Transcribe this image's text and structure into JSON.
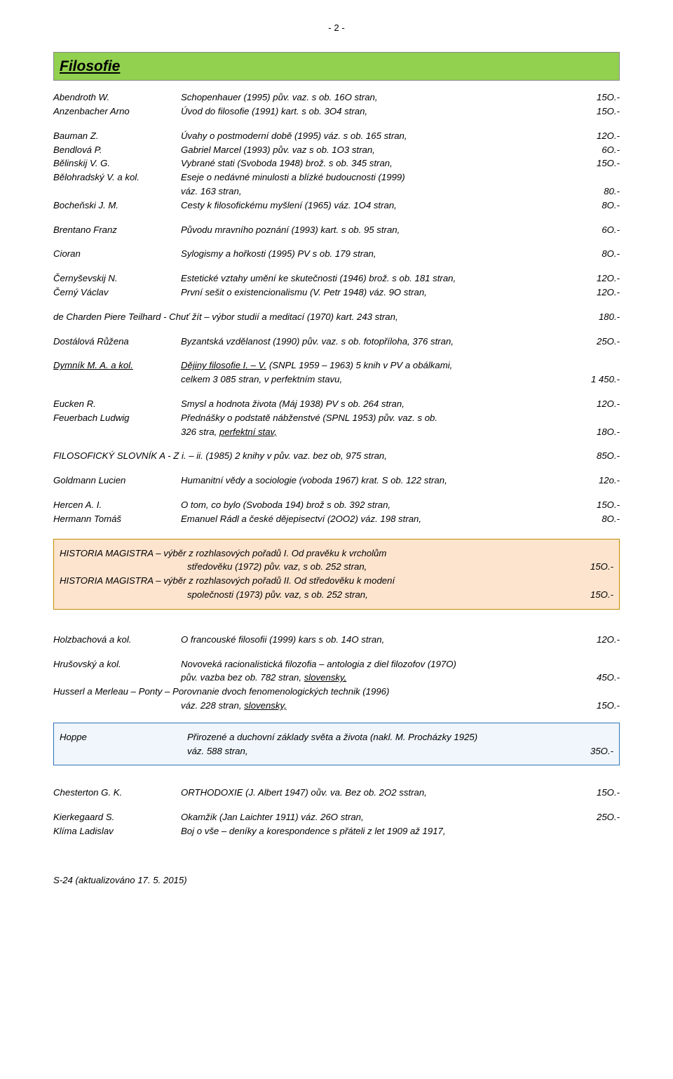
{
  "page_number": "- 2 -",
  "title": "Filosofie",
  "entries": [
    {
      "a": "Abendroth W.",
      "d": "Schopenhauer (1995) pův. vaz. s ob. 16O stran,",
      "p": "15O.-"
    },
    {
      "a": "Anzenbacher Arno",
      "d": "Úvod do filosofie (1991) kart. s ob. 3O4 stran,",
      "p": "15O.-"
    }
  ],
  "block2": [
    {
      "a": "Bauman Z.",
      "d": "Úvahy o postmoderní době (1995) váz. s ob. 165 stran,",
      "p": "12O.-"
    },
    {
      "a": "Bendlová P.",
      "d": "Gabriel Marcel (1993) pův. vaz s ob. 1O3 stran,",
      "p": "6O.-"
    },
    {
      "a": "Bělinskij V. G.",
      "d": "Vybrané stati (Svoboda 1948) brož. s ob. 345 stran,",
      "p": "15O.-"
    },
    {
      "a": "Bělohradský V. a kol.",
      "d": "Eseje o nedávné minulosti a blízké budoucnosti (1999)",
      "p": ""
    },
    {
      "a": "",
      "d": "váz. 163 stran,",
      "p": "80.-",
      "indent": true
    },
    {
      "a": "Bocheňski J. M.",
      "d": "Cesty k filosofickému myšlení (1965) váz. 1O4 stran,",
      "p": "8O.-"
    }
  ],
  "block3": [
    {
      "a": "Brentano Franz",
      "d": "Původu mravního poznání (1993) kart. s ob. 95 stran,",
      "p": "6O.-"
    }
  ],
  "block4": [
    {
      "a": "Cioran",
      "d": "Sylogismy a hořkosti (1995)  PV s ob. 179 stran,",
      "p": "8O.-"
    }
  ],
  "block5": [
    {
      "a": "Černyševskij N.",
      "d": "Estetické vztahy umění ke skutečnosti (1946) brož. s ob. 181 stran,",
      "p": "12O.-"
    },
    {
      "a": "Černý Václav",
      "d": "První sešit o existencionalismu (V. Petr 1948) váz. 9O stran,",
      "p": "12O.-"
    }
  ],
  "charden_full": "de Charden Piere Teilhard -  Chuť žít – výbor studií a meditací  (1970)  kart. 243 stran,",
  "charden_p": "180.-",
  "block7": [
    {
      "a": "Dostálová Růžena",
      "d": "Byzantská vzdělanost (1990) pův. vaz. s ob. fotopříloha, 376 stran,",
      "p": "25O.-"
    }
  ],
  "dymnik_a": "Dymník M. A. a kol.",
  "dymnik_d1": "Dějiny filosofie I. – V.",
  "dymnik_d2": " (SNPL 1959 – 1963) 5 knih v PV a obálkami,",
  "dymnik_line2": "celkem 3 085 stran,  v perfektním stavu,",
  "dymnik_p": "1 450.-",
  "block9": [
    {
      "a": "Eucken R.",
      "d": "Smysl a hodnota života (Máj 1938) PV s ob.  264 stran,",
      "p": "12O.-"
    },
    {
      "a": "Feuerbach Ludwig",
      "d": "Přednášky o podstatě nábženstvé (SPNL 1953) pův. vaz. s ob.",
      "p": ""
    }
  ],
  "feuer_line2_d": "326 stra, ",
  "feuer_line2_u": "perfektní stav,",
  "feuer_p": "18O.-",
  "filoslovnik_d": "FILOSOFICKÝ SLOVNÍK A - Z  i.  –  ii. (1985) 2 knihy v pův. vaz. bez ob,  975 stran,",
  "filoslovnik_p": "85O.-",
  "block11": [
    {
      "a": "Goldmann Lucien",
      "d": "Humanitní vědy a sociologie (voboda 1967) krat. S ob. 122 stran,",
      "p": "12o.-"
    }
  ],
  "block12": [
    {
      "a": "Hercen  A. I.",
      "d": "O tom, co bylo (Svoboda 194) brož s ob. 392 stran,",
      "p": "15O.-"
    },
    {
      "a": "Hermann Tomáš",
      "d": "Emanuel Rádl a české dějepisectví (2OO2) váz. 198 stran,",
      "p": "8O.-"
    }
  ],
  "historia1_d1": "HISTORIA MAGISTRA – výběr z rozhlasových pořadů I. Od pravěku k vrcholům",
  "historia1_d2": "středověku (1972) pův. vaz, s ob. 252 stran,",
  "historia1_p": "15O.-",
  "historia2_d1": "HISTORIA MAGISTRA – výběr z rozhlasových pořadů II. Od středověku k modení",
  "historia2_d2": "společnosti (1973) pův. vaz, s ob. 252 stran,",
  "historia2_p": "15O.-",
  "block13": [
    {
      "a": "Holzbachová a kol.",
      "d": "O francouské filosofii (1999) kars s ob. 14O stran,",
      "p": "12O.-"
    }
  ],
  "hrusovsky_a": "Hrušovský a kol.",
  "hrusovsky_d1": "Novoveká racionalistická filozofia – antologia z diel filozofov (197O)",
  "hrusovsky_d2a": "pův. vazba bez ob. 782 stran, ",
  "hrusovsky_d2u": "slovensky,",
  "hrusovsky_p": "45O.-",
  "husserl_d1": "Husserl a Merleau – Ponty – Porovnanie dvoch fenomenologických technik (1996)",
  "husserl_d2": "váz. 228 stran, ",
  "husserl_d2u": "slovensky,",
  "husserl_p": "15O.-",
  "hoppe_a": "Hoppe",
  "hoppe_d1": "Přirozené a duchovní základy světa a života (nakl. M. Procházky 1925)",
  "hoppe_d2": "váz. 588 stran,",
  "hoppe_p": "35O.-",
  "block15": [
    {
      "a": "Chesterton G. K.",
      "d": "ORTHODOXIE (J. Albert 1947) oův. va. Bez ob. 2O2 sstran,",
      "p": "15O.-"
    }
  ],
  "block16": [
    {
      "a": "Kierkegaard S.",
      "d": "Okamžik (Jan Laichter 1911) váz. 26O stran,",
      "p": "25O.-"
    },
    {
      "a": "Klíma Ladislav",
      "d": "Boj o vše – deníky a korespondence s přáteli z let 1909 až 1917,",
      "p": ""
    }
  ],
  "footer": "S-24 (aktualizováno  17. 5. 2015)"
}
